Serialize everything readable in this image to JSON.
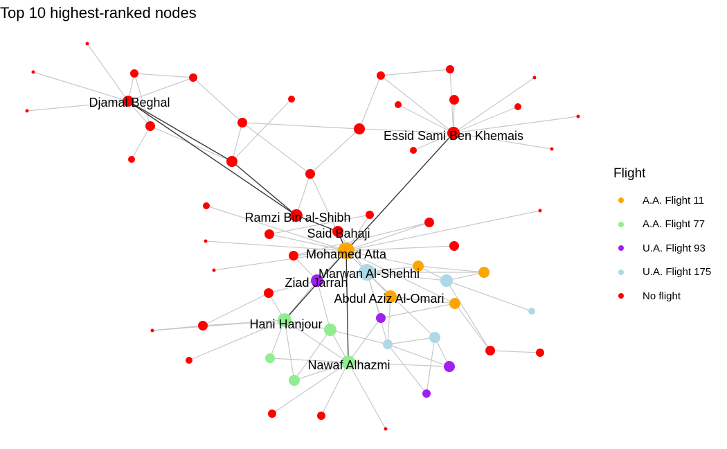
{
  "title": "Top 10 highest-ranked nodes",
  "legend": {
    "title": "Flight",
    "items": [
      {
        "label": "A.A. Flight 11",
        "color": "#FFA500"
      },
      {
        "label": "A.A. Flight 77",
        "color": "#90EE90"
      },
      {
        "label": "U.A. Flight 93",
        "color": "#A020F0"
      },
      {
        "label": "U.A. Flight 175",
        "color": "#ADD8E6"
      },
      {
        "label": "No flight",
        "color": "#FF0000"
      }
    ]
  },
  "labels": [
    {
      "text": "Djamal Beghal"
    },
    {
      "text": "Essid Sami Ben Khemais"
    },
    {
      "text": "Ramzi Bin al-Shibh"
    },
    {
      "text": "Said Bahaji"
    },
    {
      "text": "Mohamed Atta"
    },
    {
      "text": "Marwan Al-Shehhi"
    },
    {
      "text": "Ziad Jarrah"
    },
    {
      "text": "Abdul Aziz Al-Omari"
    },
    {
      "text": "Hani Hanjour"
    },
    {
      "text": "Nawaf Alhazmi"
    }
  ]
}
